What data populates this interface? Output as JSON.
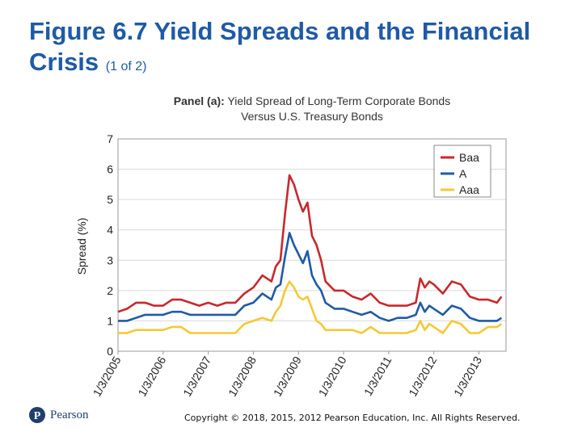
{
  "slide": {
    "title_main": "Figure 6.7 Yield Spreads and the Financial Crisis",
    "title_part": "(1 of 2)",
    "copyright": "Copyright © 2018, 2015, 2012 Pearson Education, Inc. All Rights Reserved.",
    "logo_text": "Pearson",
    "brand_color": "#1f5aa6"
  },
  "chart_data": {
    "type": "line",
    "panel_label": "Panel (a):",
    "title": "Yield Spread of Long-Term Corporate Bonds Versus U.S. Treasury Bonds",
    "xlabel": "",
    "ylabel": "Spread (%)",
    "ylim": [
      0,
      7
    ],
    "yticks": [
      "0",
      "1",
      "2",
      "3",
      "4",
      "5",
      "6",
      "7"
    ],
    "xlim": [
      2005.0,
      2013.6
    ],
    "xticks": [
      {
        "value": 2005,
        "label": "1/3/2005"
      },
      {
        "value": 2006,
        "label": "1/3/2006"
      },
      {
        "value": 2007,
        "label": "1/3/2007"
      },
      {
        "value": 2008,
        "label": "1/3/2008"
      },
      {
        "value": 2009,
        "label": "1/3/2009"
      },
      {
        "value": 2010,
        "label": "1/3/2010"
      },
      {
        "value": 2011,
        "label": "1/3/2011"
      },
      {
        "value": 2012,
        "label": "1/3/2012"
      },
      {
        "value": 2013,
        "label": "1/3/2013"
      }
    ],
    "grid": true,
    "legend_position": "top-right",
    "series": [
      {
        "name": "Baa",
        "color": "#c8282d",
        "x": [
          2005.0,
          2005.2,
          2005.4,
          2005.6,
          2005.8,
          2006.0,
          2006.2,
          2006.4,
          2006.6,
          2006.8,
          2007.0,
          2007.2,
          2007.4,
          2007.6,
          2007.8,
          2008.0,
          2008.2,
          2008.4,
          2008.5,
          2008.6,
          2008.7,
          2008.8,
          2008.9,
          2009.0,
          2009.1,
          2009.2,
          2009.3,
          2009.4,
          2009.5,
          2009.6,
          2009.8,
          2010.0,
          2010.2,
          2010.4,
          2010.6,
          2010.8,
          2011.0,
          2011.2,
          2011.4,
          2011.6,
          2011.7,
          2011.8,
          2011.9,
          2012.0,
          2012.2,
          2012.4,
          2012.6,
          2012.8,
          2013.0,
          2013.2,
          2013.4,
          2013.5
        ],
        "values": [
          1.3,
          1.4,
          1.6,
          1.6,
          1.5,
          1.5,
          1.7,
          1.7,
          1.6,
          1.5,
          1.6,
          1.5,
          1.6,
          1.6,
          1.9,
          2.1,
          2.5,
          2.3,
          2.8,
          3.0,
          4.5,
          5.8,
          5.5,
          5.0,
          4.6,
          4.9,
          3.8,
          3.5,
          3.0,
          2.3,
          2.0,
          2.0,
          1.8,
          1.7,
          1.9,
          1.6,
          1.5,
          1.5,
          1.5,
          1.6,
          2.4,
          2.1,
          2.3,
          2.2,
          1.9,
          2.3,
          2.2,
          1.8,
          1.7,
          1.7,
          1.6,
          1.8
        ]
      },
      {
        "name": "A",
        "color": "#1f5aa6",
        "x": [
          2005.0,
          2005.2,
          2005.4,
          2005.6,
          2005.8,
          2006.0,
          2006.2,
          2006.4,
          2006.6,
          2006.8,
          2007.0,
          2007.2,
          2007.4,
          2007.6,
          2007.8,
          2008.0,
          2008.2,
          2008.4,
          2008.5,
          2008.6,
          2008.7,
          2008.8,
          2008.9,
          2009.0,
          2009.1,
          2009.2,
          2009.3,
          2009.4,
          2009.5,
          2009.6,
          2009.8,
          2010.0,
          2010.2,
          2010.4,
          2010.6,
          2010.8,
          2011.0,
          2011.2,
          2011.4,
          2011.6,
          2011.7,
          2011.8,
          2011.9,
          2012.0,
          2012.2,
          2012.4,
          2012.6,
          2012.8,
          2013.0,
          2013.2,
          2013.4,
          2013.5
        ],
        "values": [
          1.0,
          1.0,
          1.1,
          1.2,
          1.2,
          1.2,
          1.3,
          1.3,
          1.2,
          1.2,
          1.2,
          1.2,
          1.2,
          1.2,
          1.5,
          1.6,
          1.9,
          1.7,
          2.1,
          2.2,
          3.1,
          3.9,
          3.5,
          3.2,
          2.9,
          3.3,
          2.5,
          2.2,
          2.0,
          1.6,
          1.4,
          1.4,
          1.3,
          1.2,
          1.3,
          1.1,
          1.0,
          1.1,
          1.1,
          1.2,
          1.6,
          1.3,
          1.5,
          1.4,
          1.2,
          1.5,
          1.4,
          1.1,
          1.0,
          1.0,
          1.0,
          1.1
        ]
      },
      {
        "name": "Aaa",
        "color": "#f3c934",
        "x": [
          2005.0,
          2005.2,
          2005.4,
          2005.6,
          2005.8,
          2006.0,
          2006.2,
          2006.4,
          2006.6,
          2006.8,
          2007.0,
          2007.2,
          2007.4,
          2007.6,
          2007.8,
          2008.0,
          2008.2,
          2008.4,
          2008.5,
          2008.6,
          2008.7,
          2008.8,
          2008.9,
          2009.0,
          2009.1,
          2009.2,
          2009.3,
          2009.4,
          2009.5,
          2009.6,
          2009.8,
          2010.0,
          2010.2,
          2010.4,
          2010.6,
          2010.8,
          2011.0,
          2011.2,
          2011.4,
          2011.6,
          2011.7,
          2011.8,
          2011.9,
          2012.0,
          2012.2,
          2012.4,
          2012.6,
          2012.8,
          2013.0,
          2013.2,
          2013.4,
          2013.5
        ],
        "values": [
          0.6,
          0.6,
          0.7,
          0.7,
          0.7,
          0.7,
          0.8,
          0.8,
          0.6,
          0.6,
          0.6,
          0.6,
          0.6,
          0.6,
          0.9,
          1.0,
          1.1,
          1.0,
          1.3,
          1.5,
          2.0,
          2.3,
          2.1,
          1.8,
          1.7,
          1.8,
          1.4,
          1.0,
          0.9,
          0.7,
          0.7,
          0.7,
          0.7,
          0.6,
          0.8,
          0.6,
          0.6,
          0.6,
          0.6,
          0.7,
          1.0,
          0.7,
          0.9,
          0.8,
          0.6,
          1.0,
          0.9,
          0.6,
          0.6,
          0.8,
          0.8,
          0.9
        ]
      }
    ]
  }
}
